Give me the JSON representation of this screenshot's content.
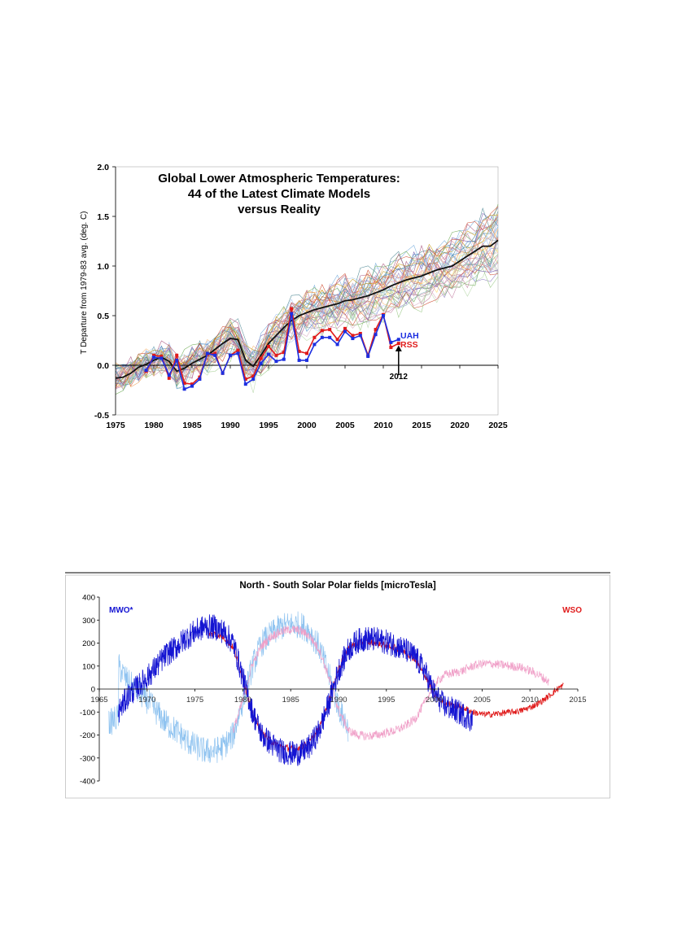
{
  "chart_data": [
    {
      "type": "line",
      "title": [
        "Global Lower Atmospheric Temperatures:",
        "44 of the Latest Climate Models",
        "versus Reality"
      ],
      "ylabel": "T Departure from 1979-83 avg. (deg. C)",
      "xlim": [
        1975,
        2025
      ],
      "ylim": [
        -0.5,
        2.0
      ],
      "xticks": [
        "1975",
        "1980",
        "1985",
        "1990",
        "1995",
        "2000",
        "2005",
        "2010",
        "2015",
        "2020",
        "2025"
      ],
      "yticks": [
        "-0.5",
        "0.0",
        "0.5",
        "1.0",
        "1.5",
        "2.0"
      ],
      "annotation": "2012",
      "annotation_x": 2012,
      "model_count": 44,
      "model_mean": {
        "x": [
          1975,
          1976,
          1977,
          1978,
          1979,
          1980,
          1981,
          1982,
          1983,
          1984,
          1985,
          1986,
          1987,
          1988,
          1989,
          1990,
          1991,
          1992,
          1993,
          1994,
          1995,
          1996,
          1997,
          1998,
          1999,
          2000,
          2001,
          2002,
          2003,
          2004,
          2005,
          2006,
          2007,
          2008,
          2009,
          2010,
          2011,
          2012,
          2013,
          2014,
          2015,
          2016,
          2017,
          2018,
          2019,
          2020,
          2021,
          2022,
          2023,
          2024,
          2025
        ],
        "values": [
          -0.13,
          -0.12,
          -0.08,
          -0.02,
          0.01,
          0.05,
          0.08,
          0.04,
          -0.06,
          -0.03,
          0.02,
          0.06,
          0.1,
          0.16,
          0.22,
          0.27,
          0.26,
          0.05,
          -0.01,
          0.1,
          0.22,
          0.3,
          0.38,
          0.45,
          0.5,
          0.53,
          0.56,
          0.58,
          0.6,
          0.62,
          0.65,
          0.66,
          0.68,
          0.7,
          0.73,
          0.76,
          0.8,
          0.83,
          0.86,
          0.88,
          0.9,
          0.93,
          0.96,
          0.98,
          1.0,
          1.05,
          1.1,
          1.15,
          1.2,
          1.2,
          1.26
        ]
      },
      "series": [
        {
          "name": "UAH",
          "color": "#1d2fe0",
          "x": [
            1979,
            1980,
            1981,
            1982,
            1983,
            1984,
            1985,
            1986,
            1987,
            1988,
            1989,
            1990,
            1991,
            1992,
            1993,
            1994,
            1995,
            1996,
            1997,
            1998,
            1999,
            2000,
            2001,
            2002,
            2003,
            2004,
            2005,
            2006,
            2007,
            2008,
            2009,
            2010,
            2011,
            2012
          ],
          "values": [
            -0.05,
            0.08,
            0.07,
            -0.1,
            0.05,
            -0.24,
            -0.21,
            -0.14,
            0.12,
            0.1,
            -0.08,
            0.1,
            0.12,
            -0.19,
            -0.14,
            0.02,
            0.11,
            0.04,
            0.06,
            0.52,
            0.05,
            0.05,
            0.21,
            0.28,
            0.28,
            0.21,
            0.34,
            0.27,
            0.3,
            0.09,
            0.31,
            0.5,
            0.23,
            0.26
          ]
        },
        {
          "name": "RSS",
          "color": "#e01b1b",
          "x": [
            1979,
            1980,
            1981,
            1982,
            1983,
            1984,
            1985,
            1986,
            1987,
            1988,
            1989,
            1990,
            1991,
            1992,
            1993,
            1994,
            1995,
            1996,
            1997,
            1998,
            1999,
            2000,
            2001,
            2002,
            2003,
            2004,
            2005,
            2006,
            2007,
            2008,
            2009,
            2010,
            2011,
            2012
          ],
          "values": [
            -0.06,
            0.1,
            0.09,
            -0.13,
            0.1,
            -0.18,
            -0.19,
            -0.12,
            0.11,
            0.12,
            -0.08,
            0.1,
            0.15,
            -0.14,
            -0.11,
            0.07,
            0.19,
            0.1,
            0.13,
            0.57,
            0.14,
            0.12,
            0.28,
            0.35,
            0.36,
            0.26,
            0.37,
            0.3,
            0.32,
            0.1,
            0.36,
            0.51,
            0.18,
            0.22
          ]
        }
      ],
      "legend": [
        "UAH",
        "RSS"
      ]
    },
    {
      "type": "line",
      "title": "North - South Solar Polar fields [microTesla]",
      "xlim": [
        1965,
        2015
      ],
      "ylim": [
        -400,
        400
      ],
      "xticks": [
        "1965",
        "1970",
        "1975",
        "1980",
        "1985",
        "1990",
        "1995",
        "2000",
        "2005",
        "2010",
        "2015"
      ],
      "yticks": [
        "400",
        "300",
        "200",
        "100",
        "0",
        "-100",
        "-200",
        "-300",
        "-400"
      ],
      "series": [
        {
          "name": "MWO*",
          "color": "#1414d2",
          "x": [
            1967,
            1968,
            1969,
            1970,
            1971,
            1972,
            1973,
            1974,
            1975,
            1976,
            1977,
            1978,
            1979,
            1980,
            1981,
            1982,
            1983,
            1984,
            1985,
            1986,
            1987,
            1988,
            1989,
            1990,
            1991,
            1992,
            1993,
            1994,
            1995,
            1996,
            1997,
            1998,
            1999,
            2000,
            2001,
            2002,
            2003,
            2004
          ],
          "values": [
            -100,
            -30,
            10,
            50,
            100,
            150,
            180,
            220,
            250,
            270,
            270,
            250,
            200,
            50,
            -100,
            -200,
            -240,
            -270,
            -280,
            -280,
            -250,
            -180,
            -60,
            80,
            170,
            210,
            220,
            215,
            205,
            190,
            170,
            140,
            80,
            -20,
            -70,
            -90,
            -110,
            -140
          ]
        },
        {
          "name": "WSO",
          "color": "#e01b1b",
          "x": [
            1976.5,
            1977,
            1978,
            1979,
            1980,
            1981,
            1982,
            1983,
            1984,
            1985,
            1986,
            1987,
            1988,
            1989,
            1990,
            1991,
            1992,
            1993,
            1994,
            1995,
            1996,
            1997,
            1998,
            1999,
            2000,
            2001,
            2002,
            2003,
            2004,
            2005,
            2006,
            2007,
            2008,
            2009,
            2010,
            2011,
            2012,
            2013,
            2013.5
          ],
          "values": [
            240,
            240,
            225,
            180,
            50,
            -110,
            -190,
            -230,
            -250,
            -260,
            -255,
            -230,
            -170,
            -50,
            90,
            180,
            200,
            205,
            200,
            190,
            180,
            160,
            130,
            60,
            -20,
            -60,
            -70,
            -80,
            -100,
            -110,
            -110,
            -105,
            -100,
            -95,
            -80,
            -60,
            -30,
            5,
            15
          ]
        }
      ],
      "mirror_series": [
        {
          "color": "#8fc3f0",
          "x_range": [
            1966,
            1991
          ]
        },
        {
          "color": "#f0a0c8",
          "x_range": [
            1979,
            2012
          ]
        }
      ],
      "legend": [
        "MWO*",
        "WSO"
      ]
    }
  ]
}
